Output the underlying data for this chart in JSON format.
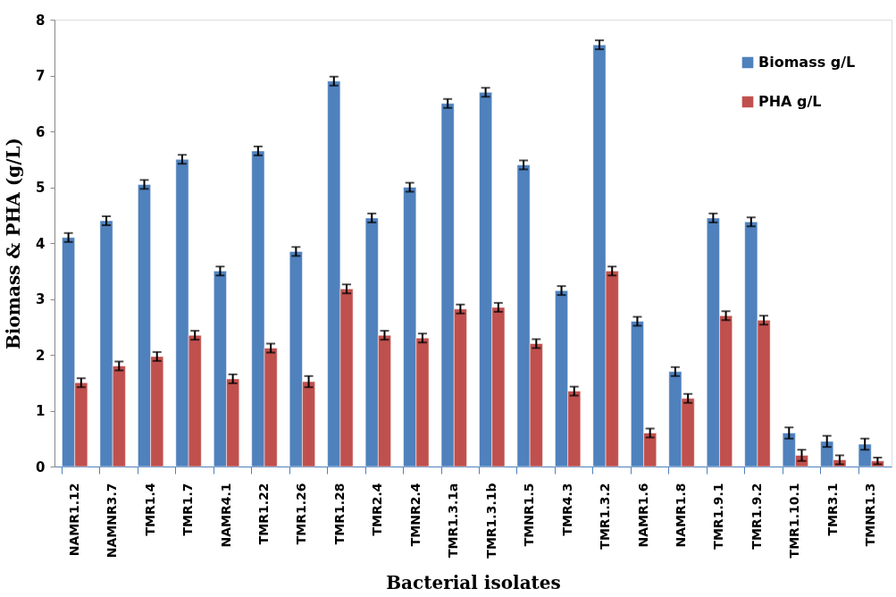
{
  "chart_data": {
    "type": "bar",
    "xlabel": "Bacterial isolates",
    "ylabel": "Biomass & PHA (g/L)",
    "categories": [
      "NAMR1.12",
      "NAMNR3.7",
      "TMR1.4",
      "TMR1.7",
      "NAMR4.1",
      "TMR1.22",
      "TMR1.26",
      "TMR1.28",
      "TMR2.4",
      "TMNR2.4",
      "TMR1.3.1a",
      "TMR1.3.1b",
      "TMNR1.5",
      "TMR4.3",
      "TMR1.3.2",
      "NAMR1.6",
      "NAMR1.8",
      "TMR1.9.1",
      "TMR1.9.2",
      "TMR1.10.1",
      "TMR3.1",
      "TMNR1.3"
    ],
    "series": [
      {
        "name": "Biomass g/L",
        "color": "#4f81bd",
        "values": [
          4.1,
          4.4,
          5.05,
          5.5,
          3.5,
          5.65,
          3.85,
          6.9,
          4.45,
          5.0,
          6.5,
          6.7,
          5.4,
          3.15,
          7.55,
          2.6,
          1.7,
          4.45,
          4.38,
          0.6,
          0.45,
          0.4
        ],
        "errors": [
          0.08,
          0.08,
          0.08,
          0.08,
          0.08,
          0.08,
          0.08,
          0.08,
          0.08,
          0.08,
          0.08,
          0.08,
          0.08,
          0.08,
          0.08,
          0.08,
          0.08,
          0.08,
          0.08,
          0.1,
          0.1,
          0.1
        ]
      },
      {
        "name": "PHA g/L",
        "color": "#c0504d",
        "values": [
          1.5,
          1.8,
          1.97,
          2.35,
          1.57,
          2.12,
          1.52,
          3.18,
          2.35,
          2.3,
          2.82,
          2.85,
          2.2,
          1.35,
          3.5,
          0.6,
          1.22,
          2.7,
          2.62,
          0.2,
          0.12,
          0.1
        ],
        "errors": [
          0.08,
          0.08,
          0.08,
          0.08,
          0.08,
          0.08,
          0.1,
          0.08,
          0.08,
          0.08,
          0.08,
          0.08,
          0.08,
          0.08,
          0.08,
          0.08,
          0.08,
          0.08,
          0.08,
          0.1,
          0.08,
          0.06
        ]
      }
    ],
    "ylim": [
      0,
      8
    ],
    "yticks": [
      0,
      1,
      2,
      3,
      4,
      5,
      6,
      7,
      8
    ],
    "grid": false,
    "legend": "top right"
  }
}
